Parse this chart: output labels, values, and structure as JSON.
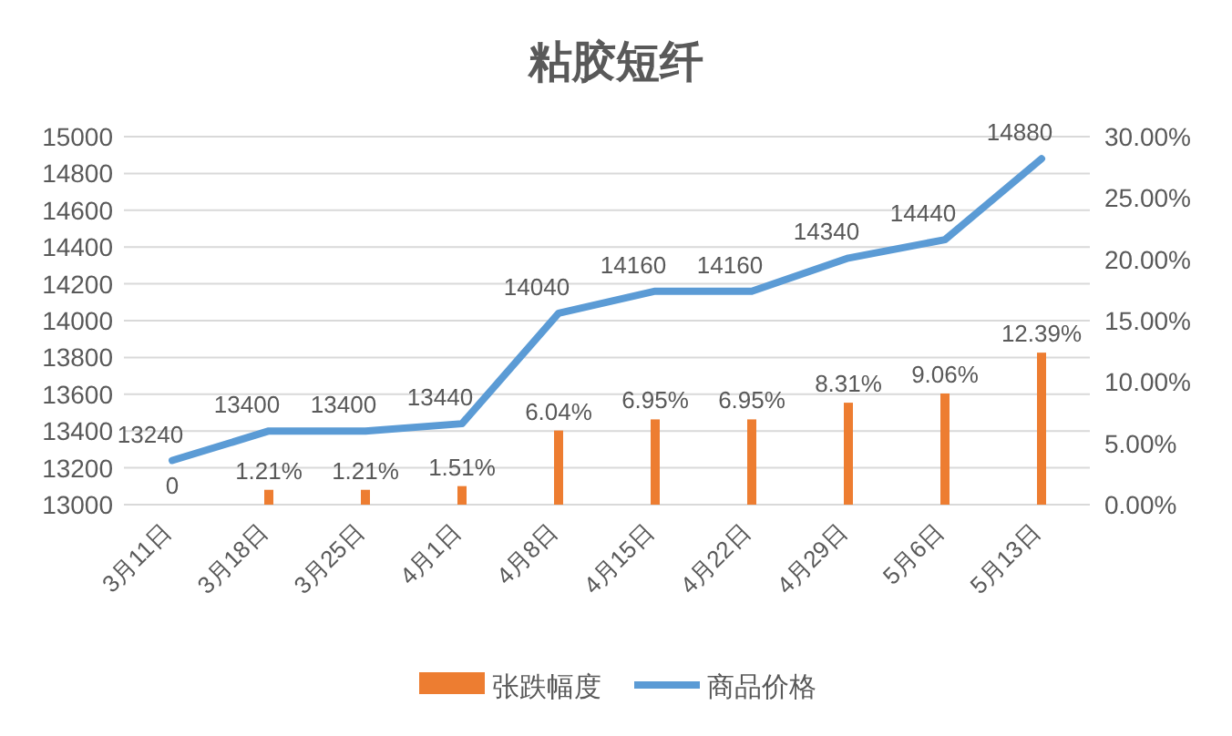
{
  "chart_data": {
    "type": "bar",
    "title": "粘胶短纤",
    "categories": [
      "3月11日",
      "3月18日",
      "3月25日",
      "4月1日",
      "4月8日",
      "4月15日",
      "4月22日",
      "4月29日",
      "5月6日",
      "5月13日"
    ],
    "series": [
      {
        "name": "张跌幅度",
        "axis": "y2",
        "color": "#ed7d31",
        "values": [
          0,
          1.21,
          1.21,
          1.51,
          6.04,
          6.95,
          6.95,
          8.31,
          9.06,
          12.39
        ],
        "value_labels": [
          "0",
          "1.21%",
          "1.21%",
          "1.51%",
          "6.04%",
          "6.95%",
          "6.95%",
          "8.31%",
          "9.06%",
          "12.39%"
        ]
      },
      {
        "name": "商品价格",
        "type": "line",
        "color": "#5b9bd5",
        "values": [
          13240,
          13400,
          13400,
          13440,
          14040,
          14160,
          14160,
          14340,
          14440,
          14880
        ],
        "data_labels": true
      }
    ],
    "ylim": [
      13000,
      15000
    ],
    "yticks": [
      13000,
      13200,
      13400,
      13600,
      13800,
      14000,
      14200,
      14400,
      14600,
      14800,
      15000
    ],
    "y2lim": [
      0,
      30
    ],
    "y2ticks": [
      {
        "value": 0,
        "label": "0.00%"
      },
      {
        "value": 5,
        "label": "5.00%"
      },
      {
        "value": 10,
        "label": "10.00%"
      },
      {
        "value": 15,
        "label": "15.00%"
      },
      {
        "value": 20,
        "label": "20.00%"
      },
      {
        "value": 25,
        "label": "25.00%"
      },
      {
        "value": 30,
        "label": "30.00%"
      }
    ],
    "grid": "y",
    "legend": "bottom",
    "marker": "none",
    "line_style": "solid"
  }
}
